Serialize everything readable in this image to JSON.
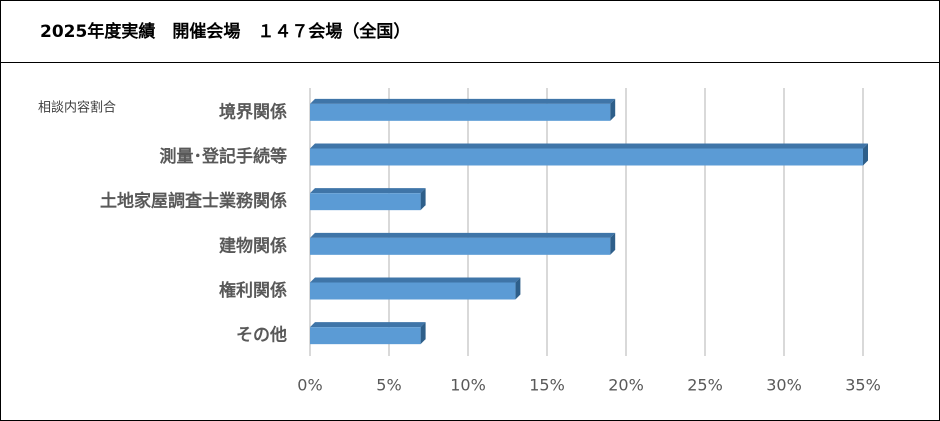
{
  "chart_data": {
    "type": "bar",
    "orientation": "horizontal",
    "title": "2025年度実績　開催会場　１４７会場（全国）",
    "subtitle": "相談内容割合",
    "categories": [
      "境界関係",
      "測量･登記手続等",
      "土地家屋調査士業務関係",
      "建物関係",
      "権利関係",
      "その他"
    ],
    "values": [
      19,
      35,
      7,
      19,
      13,
      7
    ],
    "color": "#5b9bd5",
    "xlim": [
      0,
      35
    ],
    "xticks": [
      {
        "value": 0,
        "label": "0%"
      },
      {
        "value": 5,
        "label": "5%"
      },
      {
        "value": 10,
        "label": "10%"
      },
      {
        "value": 15,
        "label": "15%"
      },
      {
        "value": 20,
        "label": "20%"
      },
      {
        "value": 25,
        "label": "25%"
      },
      {
        "value": 30,
        "label": "30%"
      },
      {
        "value": 35,
        "label": "35%"
      }
    ],
    "grid": true
  }
}
